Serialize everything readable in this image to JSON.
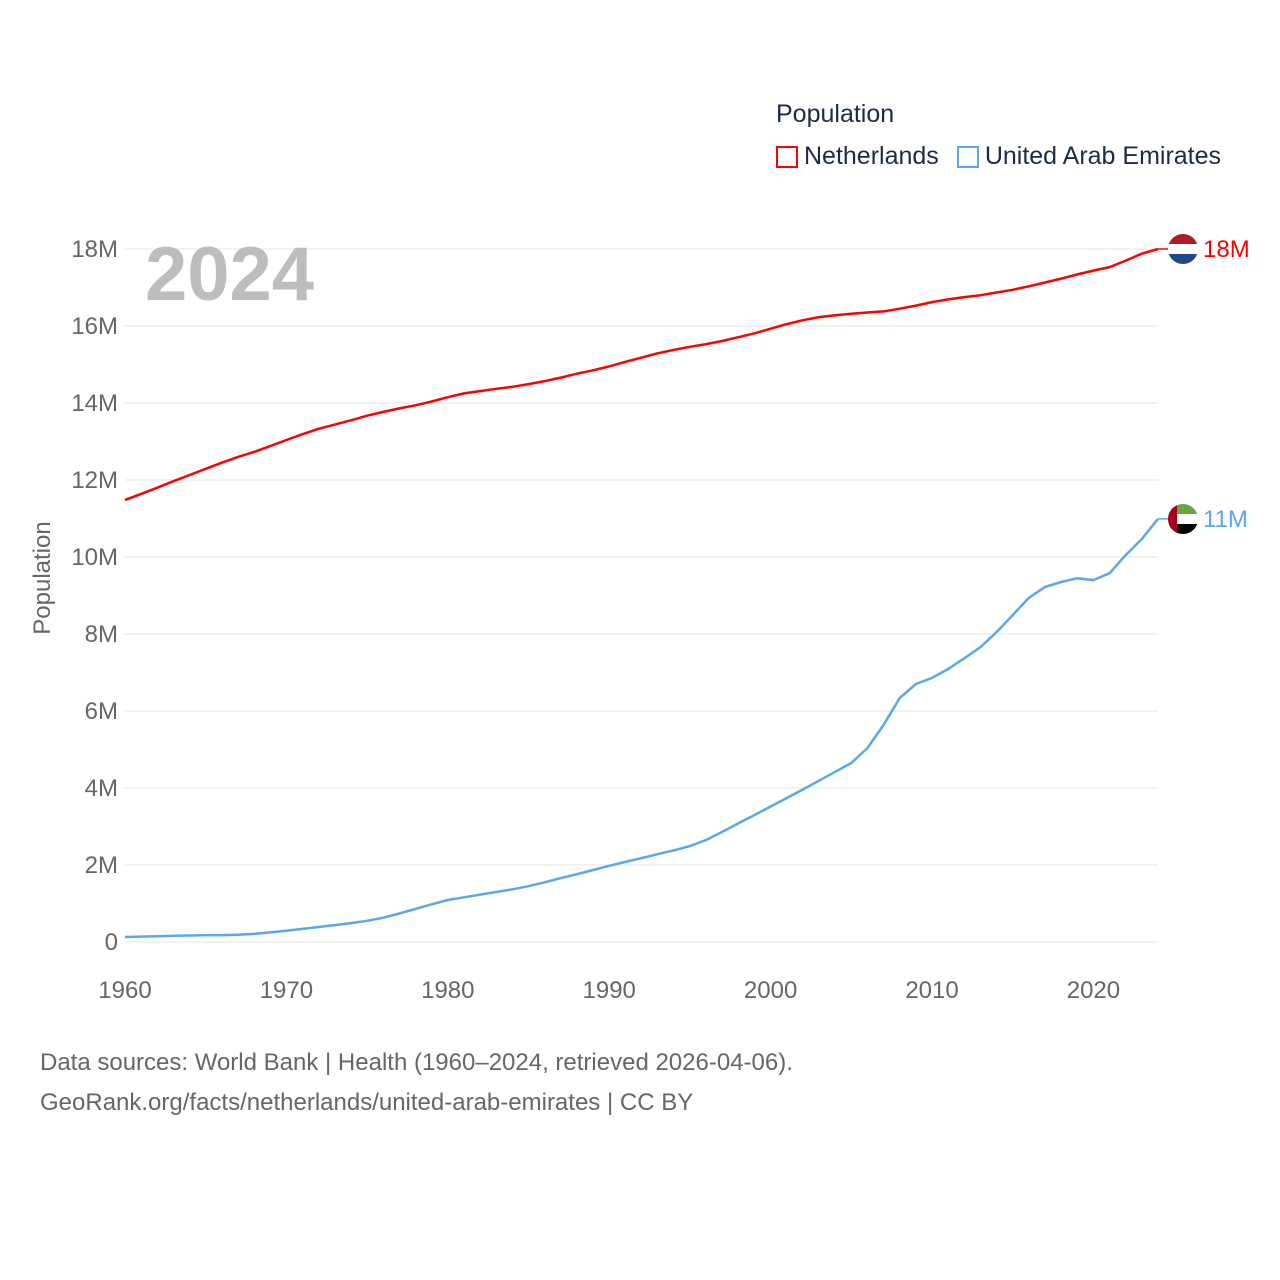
{
  "chart_data": {
    "type": "line",
    "title": "Population",
    "year_label": "2024",
    "xlabel": "",
    "ylabel": "Population",
    "xlim": [
      1960,
      2024
    ],
    "ylim": [
      0,
      18000000
    ],
    "x_ticks": [
      "1960",
      "1970",
      "1980",
      "1990",
      "2000",
      "2010",
      "2020"
    ],
    "y_ticks": [
      "0",
      "2M",
      "4M",
      "6M",
      "8M",
      "10M",
      "12M",
      "14M",
      "16M",
      "18M"
    ],
    "grid": true,
    "legend_position": "top-right",
    "x": [
      1960,
      1961,
      1962,
      1963,
      1964,
      1965,
      1966,
      1967,
      1968,
      1969,
      1970,
      1971,
      1972,
      1973,
      1974,
      1975,
      1976,
      1977,
      1978,
      1979,
      1980,
      1981,
      1982,
      1983,
      1984,
      1985,
      1986,
      1987,
      1988,
      1989,
      1990,
      1991,
      1992,
      1993,
      1994,
      1995,
      1996,
      1997,
      1998,
      1999,
      2000,
      2001,
      2002,
      2003,
      2004,
      2005,
      2006,
      2007,
      2008,
      2009,
      2010,
      2011,
      2012,
      2013,
      2014,
      2015,
      2016,
      2017,
      2018,
      2019,
      2020,
      2021,
      2022,
      2023,
      2024
    ],
    "series": [
      {
        "name": "Netherlands",
        "color": "#ff0000",
        "end_label": "18M",
        "flag": "netherlands-flag",
        "values": [
          11.48,
          11.64,
          11.8,
          11.97,
          12.13,
          12.29,
          12.45,
          12.6,
          12.73,
          12.88,
          13.04,
          13.19,
          13.33,
          13.44,
          13.55,
          13.67,
          13.77,
          13.86,
          13.94,
          14.04,
          14.15,
          14.25,
          14.31,
          14.37,
          14.42,
          14.49,
          14.57,
          14.66,
          14.76,
          14.85,
          14.95,
          15.07,
          15.18,
          15.29,
          15.38,
          15.46,
          15.53,
          15.61,
          15.71,
          15.81,
          15.93,
          16.05,
          16.15,
          16.23,
          16.28,
          16.32,
          16.35,
          16.38,
          16.45,
          16.53,
          16.62,
          16.69,
          16.75,
          16.8,
          16.87,
          16.94,
          17.03,
          17.13,
          17.23,
          17.34,
          17.44,
          17.53,
          17.7,
          17.88,
          18.0
        ]
      },
      {
        "name": "United Arab Emirates",
        "color": "#5ba7ea",
        "end_label": "11M",
        "flag": "uae-flag",
        "values": [
          0.13,
          0.14,
          0.15,
          0.16,
          0.17,
          0.18,
          0.18,
          0.19,
          0.21,
          0.25,
          0.29,
          0.34,
          0.39,
          0.44,
          0.49,
          0.55,
          0.63,
          0.74,
          0.86,
          0.98,
          1.09,
          1.16,
          1.23,
          1.3,
          1.37,
          1.45,
          1.55,
          1.66,
          1.76,
          1.87,
          1.98,
          2.08,
          2.18,
          2.28,
          2.38,
          2.49,
          2.65,
          2.86,
          3.08,
          3.3,
          3.52,
          3.74,
          3.96,
          4.19,
          4.42,
          4.65,
          5.04,
          5.64,
          6.34,
          6.7,
          6.86,
          7.09,
          7.37,
          7.66,
          8.05,
          8.49,
          8.94,
          9.22,
          9.35,
          9.45,
          9.4,
          9.58,
          10.05,
          10.47,
          10.99
        ]
      }
    ],
    "value_unit": "millions"
  },
  "footer": {
    "line1": "Data sources: World Bank | Health (1960–2024, retrieved 2026-04-06).",
    "line2": "GeoRank.org/facts/netherlands/united-arab-emirates | CC BY"
  }
}
